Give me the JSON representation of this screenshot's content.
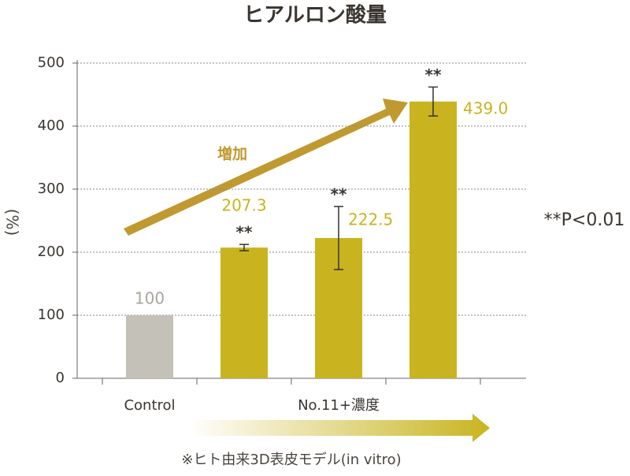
{
  "chart_data": {
    "type": "bar",
    "title": "ヒアルロン酸量",
    "y_label": "(%)",
    "categories": [
      "Control",
      null,
      null,
      null
    ],
    "group_label": "No.11+濃度",
    "values": [
      100,
      207.3,
      222.5,
      439.0
    ],
    "value_labels": [
      "100",
      "207.3",
      "222.5",
      "439.0"
    ],
    "errors": [
      null,
      5,
      50,
      23
    ],
    "colors": [
      "#c4c1b9",
      "#c9b41f",
      "#c9b41f",
      "#c9b41f"
    ],
    "significance": [
      null,
      "**",
      "**",
      "**"
    ],
    "significance_note": "**P<0.01",
    "trend_label": "増加",
    "footnote": "※ヒト由来3D表皮モデル(in vitro)",
    "ylim": [
      0,
      500
    ],
    "yticks": [
      0,
      100,
      200,
      300,
      400,
      500
    ],
    "grid": true
  }
}
